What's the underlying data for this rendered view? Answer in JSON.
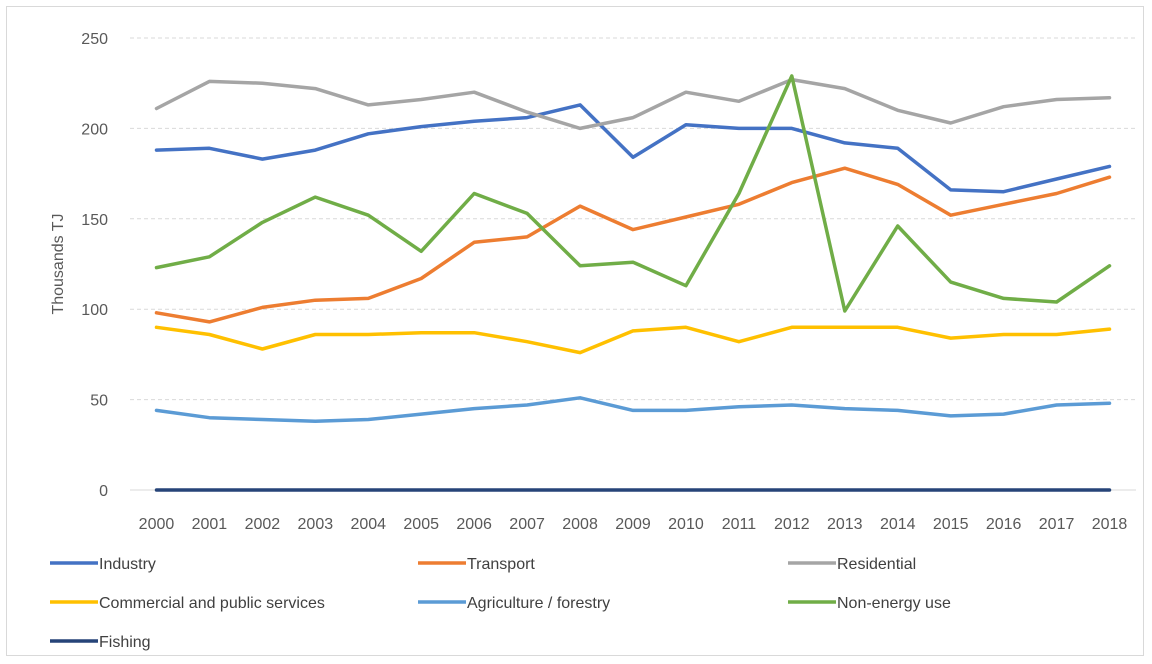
{
  "chart_data": {
    "type": "line",
    "title": "",
    "xlabel": "",
    "ylabel": "Thousands TJ",
    "ylim": [
      0,
      250
    ],
    "yticks": [
      0,
      50,
      100,
      150,
      200,
      250
    ],
    "grid": "horizontal dashed",
    "legend_position": "bottom",
    "categories": [
      "2000",
      "2001",
      "2002",
      "2003",
      "2004",
      "2005",
      "2006",
      "2007",
      "2008",
      "2009",
      "2010",
      "2011",
      "2012",
      "2013",
      "2014",
      "2015",
      "2016",
      "2017",
      "2018"
    ],
    "series": [
      {
        "name": "Industry",
        "color": "#4472C4",
        "values": [
          188,
          189,
          183,
          188,
          197,
          201,
          204,
          206,
          213,
          184,
          202,
          200,
          200,
          192,
          189,
          166,
          165,
          172,
          179
        ]
      },
      {
        "name": "Transport",
        "color": "#ED7D31",
        "values": [
          98,
          93,
          101,
          105,
          106,
          117,
          137,
          140,
          157,
          144,
          151,
          158,
          170,
          178,
          169,
          152,
          158,
          164,
          173
        ]
      },
      {
        "name": "Residential",
        "color": "#A5A5A5",
        "values": [
          211,
          226,
          225,
          222,
          213,
          216,
          220,
          209,
          200,
          206,
          220,
          215,
          227,
          222,
          210,
          203,
          212,
          216,
          217
        ]
      },
      {
        "name": "Commercial and public services",
        "color": "#FFC000",
        "values": [
          90,
          86,
          78,
          86,
          86,
          87,
          87,
          82,
          76,
          88,
          90,
          82,
          90,
          90,
          90,
          84,
          86,
          86,
          89
        ]
      },
      {
        "name": "Agriculture / forestry",
        "color": "#5B9BD5",
        "values": [
          44,
          40,
          39,
          38,
          39,
          42,
          45,
          47,
          51,
          44,
          44,
          46,
          47,
          45,
          44,
          41,
          42,
          47,
          48
        ]
      },
      {
        "name": "Non-energy use",
        "color": "#70AD47",
        "values": [
          123,
          129,
          148,
          162,
          152,
          132,
          164,
          153,
          124,
          126,
          113,
          164,
          229,
          99,
          146,
          115,
          106,
          104,
          124
        ]
      },
      {
        "name": "Fishing",
        "color": "#264478",
        "values": [
          0,
          0,
          0,
          0,
          0,
          0,
          0,
          0,
          0,
          0,
          0,
          0,
          0,
          0,
          0,
          0,
          0,
          0,
          0
        ]
      }
    ]
  }
}
